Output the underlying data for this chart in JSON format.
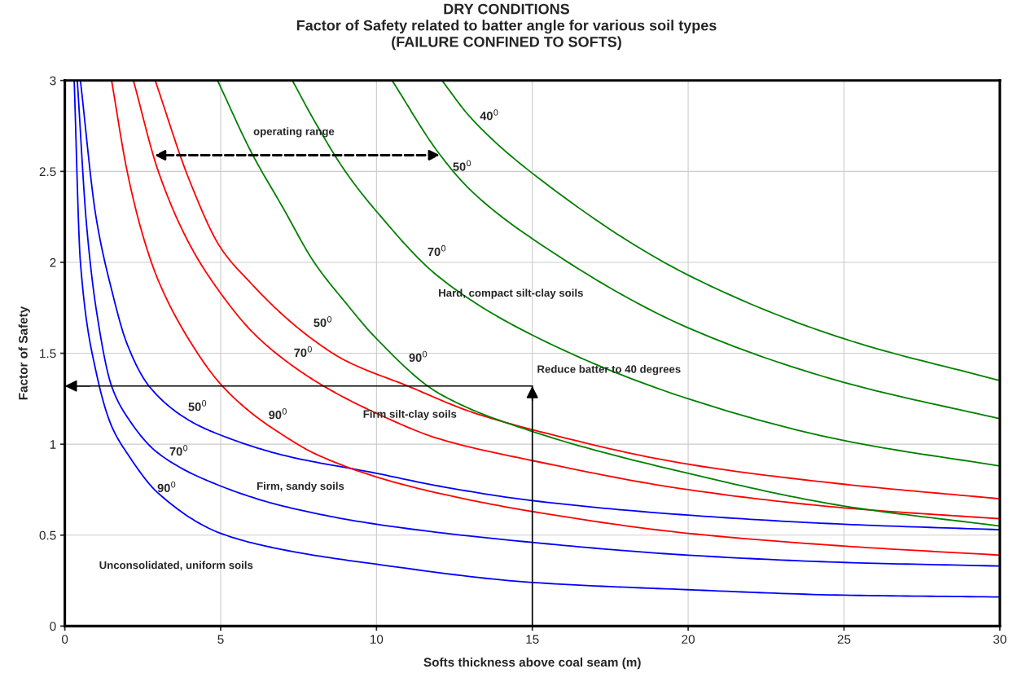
{
  "chart_data": {
    "type": "line",
    "title": "DRY CONDITIONS\nFactor of Safety related to batter angle for various soil types\n(FAILURE CONFINED TO SOFTS)",
    "xlabel": "Softs thickness above coal seam (m)",
    "ylabel": "Factor of Safety",
    "xlim": [
      0,
      30
    ],
    "ylim": [
      0,
      3
    ],
    "xticks": [
      0,
      5,
      10,
      15,
      20,
      25,
      30
    ],
    "yticks": [
      0,
      0.5,
      1,
      1.5,
      2,
      2.5,
      3
    ],
    "grid": true,
    "line_style": "solid",
    "series": [
      {
        "name": "90$^{0}$",
        "color": "#0000ff",
        "x": [
          0.3,
          0.5,
          1,
          1.5,
          2,
          3,
          5,
          7,
          10,
          15,
          20,
          25,
          30
        ],
        "values": [
          3,
          2.0,
          1.4,
          1.1,
          0.95,
          0.73,
          0.51,
          0.42,
          0.34,
          0.24,
          0.2,
          0.17,
          0.16
        ]
      },
      {
        "name": "70$^{0}$",
        "color": "#0000ff",
        "x": [
          0.4,
          0.7,
          1,
          1.5,
          2,
          3,
          5,
          7,
          10,
          15,
          20,
          25,
          30
        ],
        "values": [
          3,
          2.2,
          1.75,
          1.32,
          1.15,
          0.95,
          0.77,
          0.66,
          0.56,
          0.46,
          0.39,
          0.35,
          0.33
        ]
      },
      {
        "name": "50$^{0}$",
        "color": "#0000ff",
        "x": [
          0.5,
          1,
          1.5,
          2,
          2.7,
          4,
          5,
          7,
          10,
          12,
          15,
          20,
          25,
          30
        ],
        "values": [
          3,
          2.25,
          1.85,
          1.55,
          1.32,
          1.13,
          1.05,
          0.94,
          0.84,
          0.77,
          0.69,
          0.61,
          0.56,
          0.53
        ]
      },
      {
        "name": "90$^{0}$",
        "color": "#ff0000",
        "x": [
          1.5,
          2,
          2.5,
          3,
          4,
          5,
          6,
          7,
          8,
          10,
          12,
          15,
          20,
          25,
          30
        ],
        "values": [
          3,
          2.5,
          2.15,
          1.9,
          1.57,
          1.33,
          1.17,
          1.05,
          0.95,
          0.82,
          0.73,
          0.63,
          0.51,
          0.44,
          0.39
        ]
      },
      {
        "name": "70$^{0}$",
        "color": "#ff0000",
        "x": [
          2.2,
          3,
          4,
          5,
          6,
          7,
          8.3,
          10,
          12,
          15,
          20,
          25,
          30
        ],
        "values": [
          3,
          2.5,
          2.1,
          1.83,
          1.62,
          1.47,
          1.32,
          1.17,
          1.03,
          0.91,
          0.75,
          0.65,
          0.59
        ]
      },
      {
        "name": "50$^{0}$",
        "color": "#ff0000",
        "x": [
          2.9,
          4,
          5,
          6,
          7,
          8,
          9,
          11,
          13,
          15,
          20,
          25,
          30
        ],
        "values": [
          3,
          2.45,
          2.08,
          1.88,
          1.71,
          1.57,
          1.46,
          1.32,
          1.18,
          1.08,
          0.89,
          0.78,
          0.7
        ]
      },
      {
        "name": "90$^{0}$",
        "color": "#008000",
        "x": [
          4.9,
          6,
          7,
          8,
          9,
          10,
          12,
          15,
          20,
          25,
          30
        ],
        "values": [
          3,
          2.6,
          2.3,
          2.0,
          1.78,
          1.58,
          1.28,
          1.07,
          0.84,
          0.66,
          0.55
        ]
      },
      {
        "name": "70$^{0}$",
        "color": "#008000",
        "x": [
          7.3,
          8,
          9,
          10,
          12,
          15,
          20,
          25,
          30
        ],
        "values": [
          3,
          2.78,
          2.5,
          2.28,
          1.92,
          1.6,
          1.25,
          1.02,
          0.88
        ]
      },
      {
        "name": "50$^{0}$",
        "color": "#008000",
        "x": [
          10.5,
          12,
          13,
          15,
          20,
          25,
          30
        ],
        "values": [
          3,
          2.6,
          2.4,
          2.13,
          1.64,
          1.34,
          1.14
        ]
      },
      {
        "name": "40$^{0}$",
        "color": "#008000",
        "x": [
          12.1,
          13,
          15,
          20,
          25,
          30
        ],
        "values": [
          3,
          2.8,
          2.49,
          1.93,
          1.58,
          1.35
        ]
      }
    ],
    "ref_lines": [
      {
        "axis": "y",
        "value": 1.32,
        "label": "Reduce batter to 40 degrees",
        "color": "#000000"
      },
      {
        "axis": "x",
        "value": 15,
        "color": "#000000"
      }
    ],
    "annotations": [
      "Hard, compact silt-clay soils",
      "Firm silt-clay soils",
      "Firm, sandy soils",
      "Unconsolidated, uniform soils",
      "operating range"
    ]
  }
}
